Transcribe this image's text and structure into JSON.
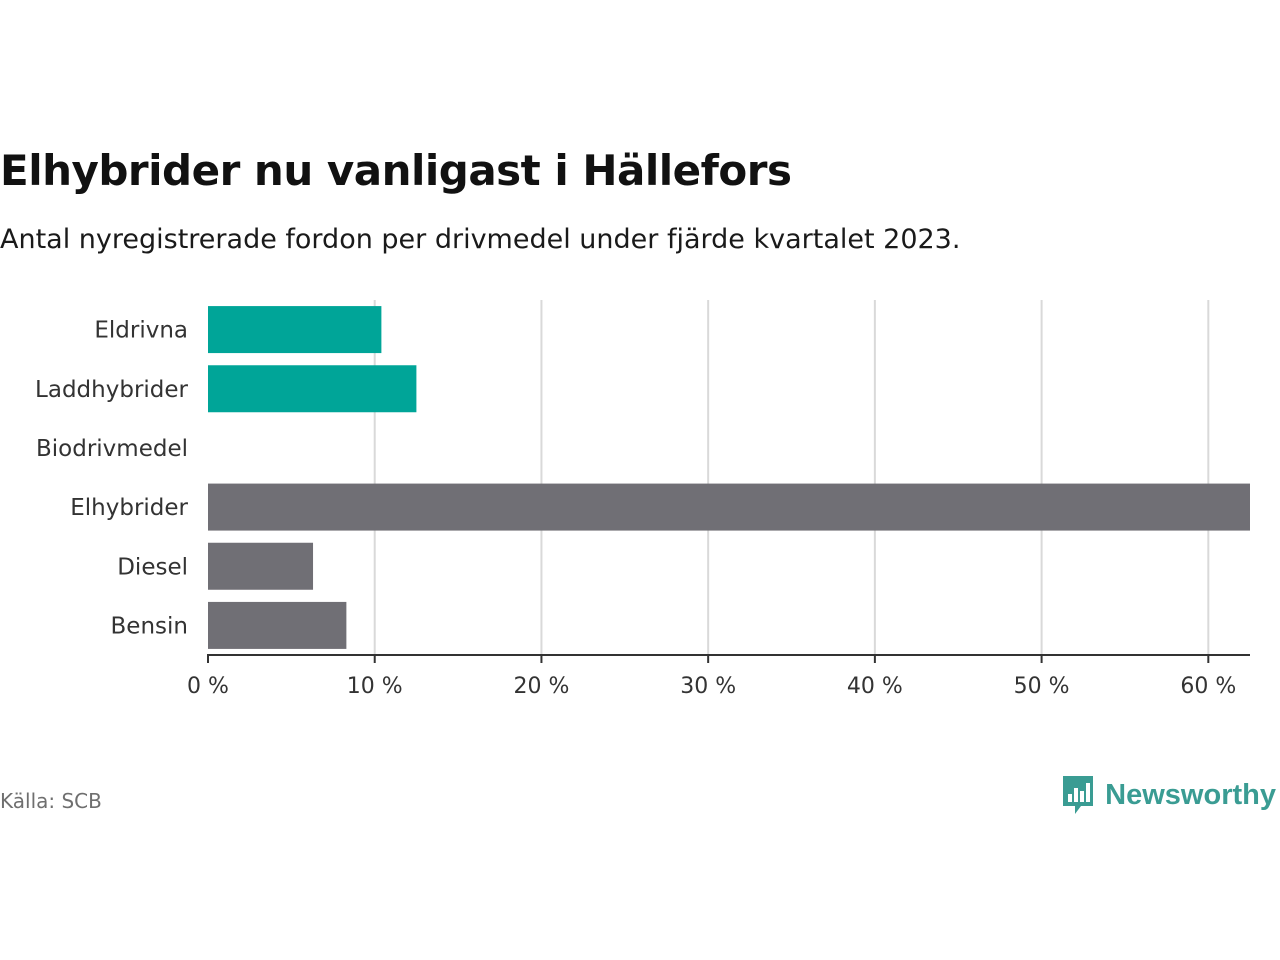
{
  "title": "Elhybrider nu vanligast i Hällefors",
  "subtitle": "Antal nyregistrerade fordon per drivmedel under fjärde kvartalet 2023.",
  "source": "Källa: SCB",
  "brand": {
    "name": "Newsworthy",
    "icon": "newsworthy-logo-icon",
    "color": "#3a9c93"
  },
  "colors": {
    "teal": "#00a598",
    "gray": "#706f75",
    "grid": "#d9d9d9",
    "axis": "#333333"
  },
  "chart_data": {
    "type": "bar",
    "orientation": "horizontal",
    "categories": [
      "Eldrivna",
      "Laddhybrider",
      "Biodrivmedel",
      "Elhybrider",
      "Diesel",
      "Bensin"
    ],
    "values": [
      10.4,
      12.5,
      0,
      62.5,
      6.3,
      8.3
    ],
    "bar_colors": [
      "teal",
      "teal",
      "gray",
      "gray",
      "gray",
      "gray"
    ],
    "xlim": [
      0,
      62.5
    ],
    "xticks": [
      0,
      10,
      20,
      30,
      40,
      50,
      60
    ],
    "xtick_labels": [
      "0 %",
      "10 %",
      "20 %",
      "30 %",
      "40 %",
      "50 %",
      "60 %"
    ],
    "grid": true
  }
}
